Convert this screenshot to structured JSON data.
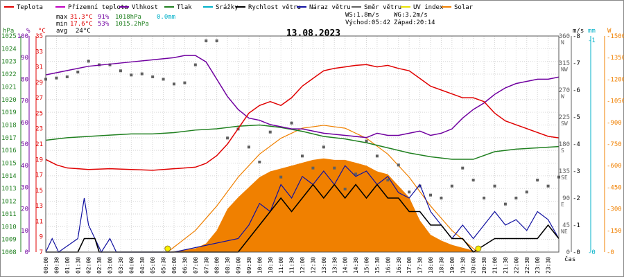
{
  "legend": [
    {
      "label": "Teplota",
      "color": "#e00000"
    },
    {
      "label": "Přízemní teplota",
      "color": "#c000c0"
    },
    {
      "label": "Vlhkost",
      "color": "#7000a0"
    },
    {
      "label": "Tlak",
      "color": "#208020"
    },
    {
      "label": "Srážky",
      "color": "#00b0c8"
    },
    {
      "label": "Rychlost větru",
      "color": "#000000"
    },
    {
      "label": "Náraz větru",
      "color": "#1010a0"
    },
    {
      "label": "Směr větru",
      "color": "#606060"
    },
    {
      "label": "UV index",
      "color": "#e8e000"
    },
    {
      "label": "Solar",
      "color": "#f08000"
    }
  ],
  "stats": {
    "max_label": "max",
    "max_temp": "31.3°C",
    "max_hum": "91%",
    "max_press": "1018hPa",
    "precip": "0.0mm",
    "min_label": "min",
    "min_temp": "17.6°C",
    "min_hum": "53%",
    "min_press": "1015.2hPa",
    "avg_label": "avg",
    "avg_temp": "24°C",
    "ws": "WS:1.8m/s",
    "wg": "WG:3.2m/s",
    "sunrise": "Východ:05:42",
    "sunset": "Západ:20:14"
  },
  "title": "13.08.2023",
  "axes": {
    "units": {
      "hpa": "hPa",
      "pct": "%",
      "degc": "°C",
      "ms": "m/s",
      "mm": "mm",
      "w": "W"
    },
    "hpa_ticks": [
      "1025",
      "1024",
      "1023",
      "1022",
      "1021",
      "1020",
      "1019",
      "1018",
      "1017",
      "1016",
      "1015",
      "1014",
      "1013",
      "1012",
      "1011",
      "1010",
      "1009",
      "1008"
    ],
    "pct_ticks": [
      "100",
      "90",
      "80",
      "70",
      "60",
      "50",
      "40",
      "30",
      "20",
      "10",
      "0"
    ],
    "degc_ticks": [
      "35",
      "33",
      "31",
      "29",
      "27",
      "25",
      "23",
      "21",
      "19",
      "17",
      "15",
      "13",
      "11",
      "9",
      "7"
    ],
    "deg_ticks": [
      {
        "v": "360",
        "d": "N"
      },
      {
        "v": "315",
        "d": "NW"
      },
      {
        "v": "270",
        "d": "W"
      },
      {
        "v": "225",
        "d": "SW"
      },
      {
        "v": "180",
        "d": "S"
      },
      {
        "v": "135",
        "d": "SE"
      },
      {
        "v": "90",
        "d": "E"
      },
      {
        "v": "45",
        "d": "NE"
      },
      {
        "v": "0",
        "d": ""
      }
    ],
    "ms_ticks": [
      "8",
      "7",
      "6",
      "5",
      "4",
      "3",
      "2",
      "1",
      "0"
    ],
    "mm_ticks": [
      "-1",
      "-0"
    ],
    "w_ticks": [
      "1500",
      "1350",
      "1200",
      "1050",
      "900",
      "750",
      "600",
      "450",
      "300",
      "150",
      "0"
    ],
    "x_ticks": [
      "00:00",
      "00:30",
      "01:00",
      "01:30",
      "02:00",
      "02:30",
      "03:00",
      "03:30",
      "04:00",
      "04:30",
      "05:00",
      "05:30",
      "06:00",
      "06:30",
      "07:00",
      "07:30",
      "08:00",
      "08:30",
      "09:00",
      "09:30",
      "10:00",
      "10:30",
      "11:00",
      "11:30",
      "12:00",
      "12:30",
      "13:00",
      "13:30",
      "14:00",
      "14:30",
      "15:00",
      "15:30",
      "16:00",
      "16:30",
      "17:00",
      "17:30",
      "18:00",
      "18:30",
      "19:00",
      "19:30",
      "20:00",
      "20:30",
      "21:00",
      "21:30",
      "22:00",
      "22:30",
      "23:00",
      "23:30"
    ],
    "x_unit": "čas"
  },
  "chart_data": {
    "type": "line",
    "title": "13.08.2023",
    "x_unit": "hours",
    "x_range": [
      0,
      24
    ],
    "temperature_c": [
      [
        0,
        19.0
      ],
      [
        0.5,
        18.3
      ],
      [
        1,
        17.9
      ],
      [
        2,
        17.7
      ],
      [
        3,
        17.8
      ],
      [
        4,
        17.7
      ],
      [
        5,
        17.6
      ],
      [
        6,
        17.8
      ],
      [
        7,
        18.0
      ],
      [
        7.5,
        18.5
      ],
      [
        8,
        19.5
      ],
      [
        8.5,
        21.0
      ],
      [
        9,
        23.0
      ],
      [
        9.5,
        25.0
      ],
      [
        10,
        26.0
      ],
      [
        10.5,
        26.5
      ],
      [
        11,
        26.0
      ],
      [
        11.5,
        27.0
      ],
      [
        12,
        28.5
      ],
      [
        12.5,
        29.5
      ],
      [
        13,
        30.5
      ],
      [
        13.5,
        30.8
      ],
      [
        14,
        31.0
      ],
      [
        14.5,
        31.2
      ],
      [
        15,
        31.3
      ],
      [
        15.5,
        31.0
      ],
      [
        16,
        31.2
      ],
      [
        16.5,
        30.8
      ],
      [
        17,
        30.5
      ],
      [
        17.5,
        29.5
      ],
      [
        18,
        28.5
      ],
      [
        18.5,
        28.0
      ],
      [
        19,
        27.5
      ],
      [
        19.5,
        27.0
      ],
      [
        20,
        27.0
      ],
      [
        20.5,
        26.5
      ],
      [
        21,
        25.0
      ],
      [
        21.5,
        24.0
      ],
      [
        22,
        23.5
      ],
      [
        22.5,
        23.0
      ],
      [
        23,
        22.5
      ],
      [
        23.5,
        22.0
      ],
      [
        24,
        21.8
      ]
    ],
    "humidity_pct": [
      [
        0,
        82
      ],
      [
        0.5,
        83
      ],
      [
        1,
        84
      ],
      [
        2,
        86
      ],
      [
        3,
        87
      ],
      [
        4,
        88
      ],
      [
        5,
        89
      ],
      [
        6,
        90
      ],
      [
        6.5,
        91
      ],
      [
        7,
        91
      ],
      [
        7.5,
        88
      ],
      [
        8,
        80
      ],
      [
        8.5,
        72
      ],
      [
        9,
        66
      ],
      [
        9.5,
        62
      ],
      [
        10,
        61
      ],
      [
        10.5,
        59
      ],
      [
        11,
        58
      ],
      [
        11.5,
        57
      ],
      [
        12,
        57
      ],
      [
        13,
        55
      ],
      [
        14,
        54
      ],
      [
        15,
        53
      ],
      [
        15.5,
        55
      ],
      [
        16,
        54
      ],
      [
        16.5,
        54
      ],
      [
        17,
        55
      ],
      [
        17.5,
        56
      ],
      [
        18,
        54
      ],
      [
        18.5,
        55
      ],
      [
        19,
        57
      ],
      [
        19.5,
        62
      ],
      [
        20,
        66
      ],
      [
        20.5,
        69
      ],
      [
        21,
        73
      ],
      [
        21.5,
        76
      ],
      [
        22,
        78
      ],
      [
        22.5,
        79
      ],
      [
        23,
        80
      ],
      [
        23.5,
        80
      ],
      [
        24,
        81
      ]
    ],
    "pressure_hpa": [
      [
        0,
        1016.8
      ],
      [
        1,
        1017.0
      ],
      [
        2,
        1017.1
      ],
      [
        3,
        1017.2
      ],
      [
        4,
        1017.3
      ],
      [
        5,
        1017.3
      ],
      [
        6,
        1017.4
      ],
      [
        7,
        1017.6
      ],
      [
        8,
        1017.7
      ],
      [
        9,
        1017.9
      ],
      [
        10,
        1018.0
      ],
      [
        10.5,
        1017.9
      ],
      [
        11,
        1017.8
      ],
      [
        12,
        1017.5
      ],
      [
        13,
        1017.1
      ],
      [
        14,
        1016.9
      ],
      [
        15,
        1016.6
      ],
      [
        16,
        1016.2
      ],
      [
        17,
        1015.8
      ],
      [
        18,
        1015.5
      ],
      [
        19,
        1015.3
      ],
      [
        20,
        1015.3
      ],
      [
        21,
        1015.9
      ],
      [
        22,
        1016.1
      ],
      [
        23,
        1016.2
      ],
      [
        24,
        1016.3
      ]
    ],
    "solar_w_m2": [
      [
        0,
        0
      ],
      [
        5.6,
        0
      ],
      [
        6,
        5
      ],
      [
        7,
        25
      ],
      [
        7.5,
        60
      ],
      [
        8,
        150
      ],
      [
        8.5,
        300
      ],
      [
        9,
        380
      ],
      [
        9.5,
        450
      ],
      [
        10,
        520
      ],
      [
        10.5,
        560
      ],
      [
        11,
        580
      ],
      [
        11.5,
        600
      ],
      [
        12,
        620
      ],
      [
        12.5,
        640
      ],
      [
        13,
        650
      ],
      [
        13.5,
        640
      ],
      [
        14,
        640
      ],
      [
        14.5,
        620
      ],
      [
        15,
        600
      ],
      [
        15.5,
        560
      ],
      [
        16,
        540
      ],
      [
        16.5,
        460
      ],
      [
        17,
        380
      ],
      [
        17.5,
        220
      ],
      [
        18,
        120
      ],
      [
        18.5,
        80
      ],
      [
        19,
        50
      ],
      [
        19.5,
        30
      ],
      [
        20,
        10
      ],
      [
        20.2,
        0
      ],
      [
        24,
        0
      ]
    ],
    "solar_clear_sky_w_m2": [
      [
        5.7,
        0
      ],
      [
        7,
        150
      ],
      [
        8,
        320
      ],
      [
        9,
        520
      ],
      [
        10,
        680
      ],
      [
        11,
        790
      ],
      [
        12,
        860
      ],
      [
        13,
        880
      ],
      [
        14,
        860
      ],
      [
        15,
        790
      ],
      [
        16,
        680
      ],
      [
        17,
        520
      ],
      [
        18,
        320
      ],
      [
        19,
        150
      ],
      [
        20.2,
        0
      ]
    ],
    "wind_speed_ms": [
      [
        0,
        0
      ],
      [
        0.5,
        0
      ],
      [
        1,
        0
      ],
      [
        1.5,
        0
      ],
      [
        1.8,
        0.5
      ],
      [
        2,
        0.5
      ],
      [
        2.3,
        0.5
      ],
      [
        2.5,
        0
      ],
      [
        3,
        0
      ],
      [
        6,
        0
      ],
      [
        9,
        0
      ],
      [
        9.5,
        0.5
      ],
      [
        10,
        1.0
      ],
      [
        10.5,
        1.5
      ],
      [
        11,
        2.0
      ],
      [
        11.5,
        1.5
      ],
      [
        12,
        2.0
      ],
      [
        12.5,
        2.5
      ],
      [
        13,
        2.0
      ],
      [
        13.5,
        2.5
      ],
      [
        14,
        2.0
      ],
      [
        14.5,
        2.5
      ],
      [
        15,
        2.0
      ],
      [
        15.5,
        2.5
      ],
      [
        16,
        2.0
      ],
      [
        16.5,
        2.0
      ],
      [
        17,
        1.5
      ],
      [
        17.5,
        1.5
      ],
      [
        18,
        1.0
      ],
      [
        18.5,
        1.0
      ],
      [
        19,
        0.5
      ],
      [
        19.5,
        0.5
      ],
      [
        20,
        0
      ],
      [
        21,
        0.5
      ],
      [
        21.5,
        0.5
      ],
      [
        22,
        0.5
      ],
      [
        22.5,
        0.5
      ],
      [
        23,
        0.5
      ],
      [
        23.5,
        1.0
      ],
      [
        24,
        0.5
      ]
    ],
    "wind_gust_ms": [
      [
        0,
        0
      ],
      [
        0.3,
        0.5
      ],
      [
        0.6,
        0
      ],
      [
        1.5,
        0.5
      ],
      [
        1.8,
        2.0
      ],
      [
        2,
        1.0
      ],
      [
        2.3,
        0.5
      ],
      [
        2.6,
        0
      ],
      [
        3,
        0.5
      ],
      [
        3.3,
        0
      ],
      [
        6,
        0
      ],
      [
        9,
        0.5
      ],
      [
        9.5,
        1.0
      ],
      [
        10,
        1.8
      ],
      [
        10.5,
        1.5
      ],
      [
        11,
        2.5
      ],
      [
        11.5,
        2.0
      ],
      [
        12,
        2.8
      ],
      [
        12.5,
        2.5
      ],
      [
        13,
        3.0
      ],
      [
        13.5,
        2.5
      ],
      [
        14,
        3.2
      ],
      [
        14.5,
        2.8
      ],
      [
        15,
        3.0
      ],
      [
        15.5,
        2.5
      ],
      [
        16,
        2.8
      ],
      [
        16.5,
        2.2
      ],
      [
        17,
        2.0
      ],
      [
        17.5,
        2.5
      ],
      [
        18,
        1.5
      ],
      [
        18.5,
        1.0
      ],
      [
        19,
        0.5
      ],
      [
        19.5,
        1.0
      ],
      [
        20,
        0.5
      ],
      [
        20.5,
        1.0
      ],
      [
        21,
        1.5
      ],
      [
        21.5,
        1.0
      ],
      [
        22,
        1.2
      ],
      [
        22.5,
        0.8
      ],
      [
        23,
        1.5
      ],
      [
        23.5,
        1.2
      ],
      [
        24,
        0.5
      ]
    ],
    "wind_direction_deg": [
      [
        0,
        288
      ],
      [
        0.5,
        290
      ],
      [
        1,
        292
      ],
      [
        1.5,
        300
      ],
      [
        2,
        318
      ],
      [
        2.5,
        312
      ],
      [
        3,
        312
      ],
      [
        3.5,
        302
      ],
      [
        4,
        295
      ],
      [
        4.5,
        297
      ],
      [
        5,
        292
      ],
      [
        5.5,
        288
      ],
      [
        6,
        280
      ],
      [
        6.5,
        282
      ],
      [
        7,
        312
      ],
      [
        7.5,
        352
      ],
      [
        8,
        352
      ],
      [
        8.5,
        190
      ],
      [
        9,
        205
      ],
      [
        9.5,
        175
      ],
      [
        10,
        150
      ],
      [
        10.5,
        200
      ],
      [
        11,
        125
      ],
      [
        11.5,
        215
      ],
      [
        12,
        160
      ],
      [
        12.5,
        140
      ],
      [
        13,
        175
      ],
      [
        13.5,
        140
      ],
      [
        14,
        105
      ],
      [
        14.5,
        130
      ],
      [
        15,
        185
      ],
      [
        15.5,
        160
      ],
      [
        16,
        120
      ],
      [
        16.5,
        145
      ],
      [
        17,
        100
      ],
      [
        17.5,
        110
      ],
      [
        18,
        95
      ],
      [
        18.5,
        90
      ],
      [
        19,
        110
      ],
      [
        19.5,
        140
      ],
      [
        20,
        120
      ],
      [
        20.5,
        90
      ],
      [
        21,
        110
      ],
      [
        21.5,
        80
      ],
      [
        22,
        90
      ],
      [
        22.5,
        100
      ],
      [
        23,
        120
      ],
      [
        23.5,
        110
      ],
      [
        24,
        125
      ]
    ],
    "precipitation_mm": 0.0,
    "sunrise": "05:42",
    "sunset": "20:14",
    "y_axes": {
      "pressure_hpa": [
        1008,
        1025
      ],
      "humidity_pct": [
        0,
        100
      ],
      "temperature_c": [
        7,
        35
      ],
      "wind_direction_deg": [
        0,
        360
      ],
      "wind_ms": [
        0,
        8
      ],
      "solar_w_m2": [
        0,
        1500
      ]
    },
    "grid": true,
    "legend_position": "top"
  }
}
